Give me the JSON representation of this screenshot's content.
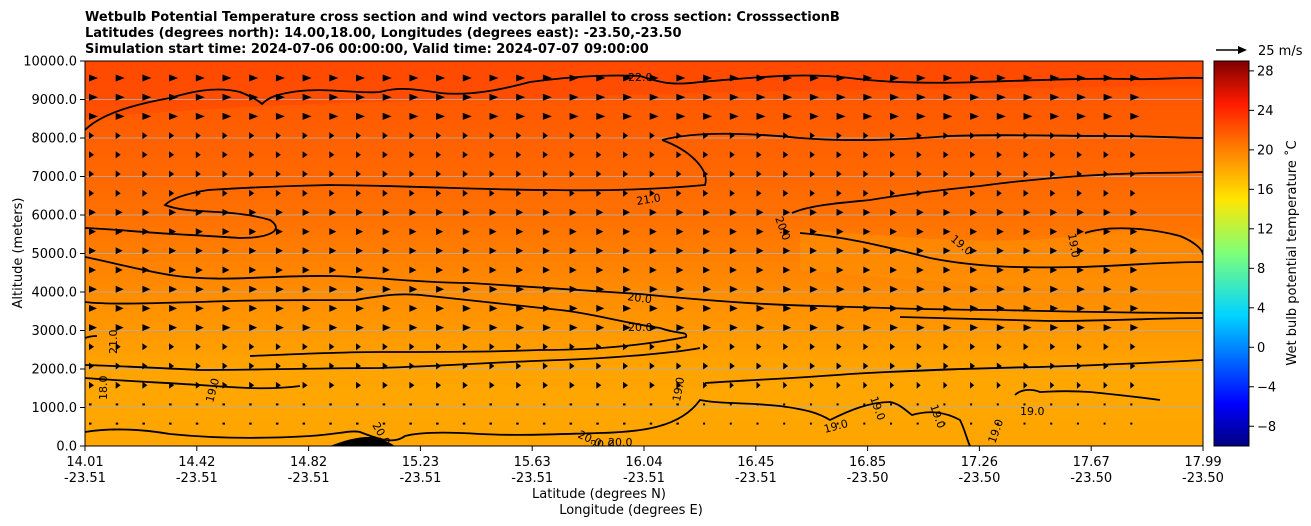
{
  "chart_data": {
    "type": "contourf",
    "title_lines": [
      "Wetbulb Potential Temperature cross section and wind vectors parallel to cross section: CrosssectionB",
      "Latitudes (degrees north): 14.00,18.00, Longitudes (degrees east): -23.50,-23.50",
      "Simulation start time: 2024-07-06 00:00:00, Valid time: 2024-07-07 09:00:00"
    ],
    "ylabel": "Altitude (meters)",
    "xlabel_line1": "Latitude (degrees N)",
    "xlabel_line2": "Longitude (degrees E)",
    "ylim": [
      0,
      10000
    ],
    "y_ticks": [
      "0.0",
      "1000.0",
      "2000.0",
      "3000.0",
      "4000.0",
      "5000.0",
      "6000.0",
      "7000.0",
      "8000.0",
      "9000.0",
      "10000.0"
    ],
    "x_ticks": [
      {
        "lat": "14.01",
        "lon": "-23.51"
      },
      {
        "lat": "14.42",
        "lon": "-23.51"
      },
      {
        "lat": "14.82",
        "lon": "-23.51"
      },
      {
        "lat": "15.23",
        "lon": "-23.51"
      },
      {
        "lat": "15.63",
        "lon": "-23.51"
      },
      {
        "lat": "16.04",
        "lon": "-23.51"
      },
      {
        "lat": "16.45",
        "lon": "-23.51"
      },
      {
        "lat": "16.85",
        "lon": "-23.50"
      },
      {
        "lat": "17.26",
        "lon": "-23.50"
      },
      {
        "lat": "17.67",
        "lon": "-23.50"
      },
      {
        "lat": "17.99",
        "lon": "-23.50"
      }
    ],
    "colorbar": {
      "label": "Wet bulb potential temperature ˚C",
      "range": [
        -10,
        29
      ],
      "ticks": [
        "−8",
        "−4",
        "0",
        "4",
        "8",
        "12",
        "16",
        "20",
        "24",
        "28"
      ],
      "colormap": "jet"
    },
    "quiver_key": {
      "label": "25 m/s",
      "speed": 25
    },
    "contour_levels_labeled": [
      "22.0",
      "21.0",
      "20.0",
      "20.0",
      "20.0",
      "19.0",
      "19.0",
      "19.0",
      "19.0",
      "18.0",
      "21.0",
      "20.0",
      "20.0",
      "20.0",
      "19.0",
      "19.0",
      "19.0",
      "19.0",
      "19.0",
      "19.0",
      "20.0"
    ],
    "wind": "westerly wind vectors, strongest aloft and near 3000-4000 m"
  }
}
